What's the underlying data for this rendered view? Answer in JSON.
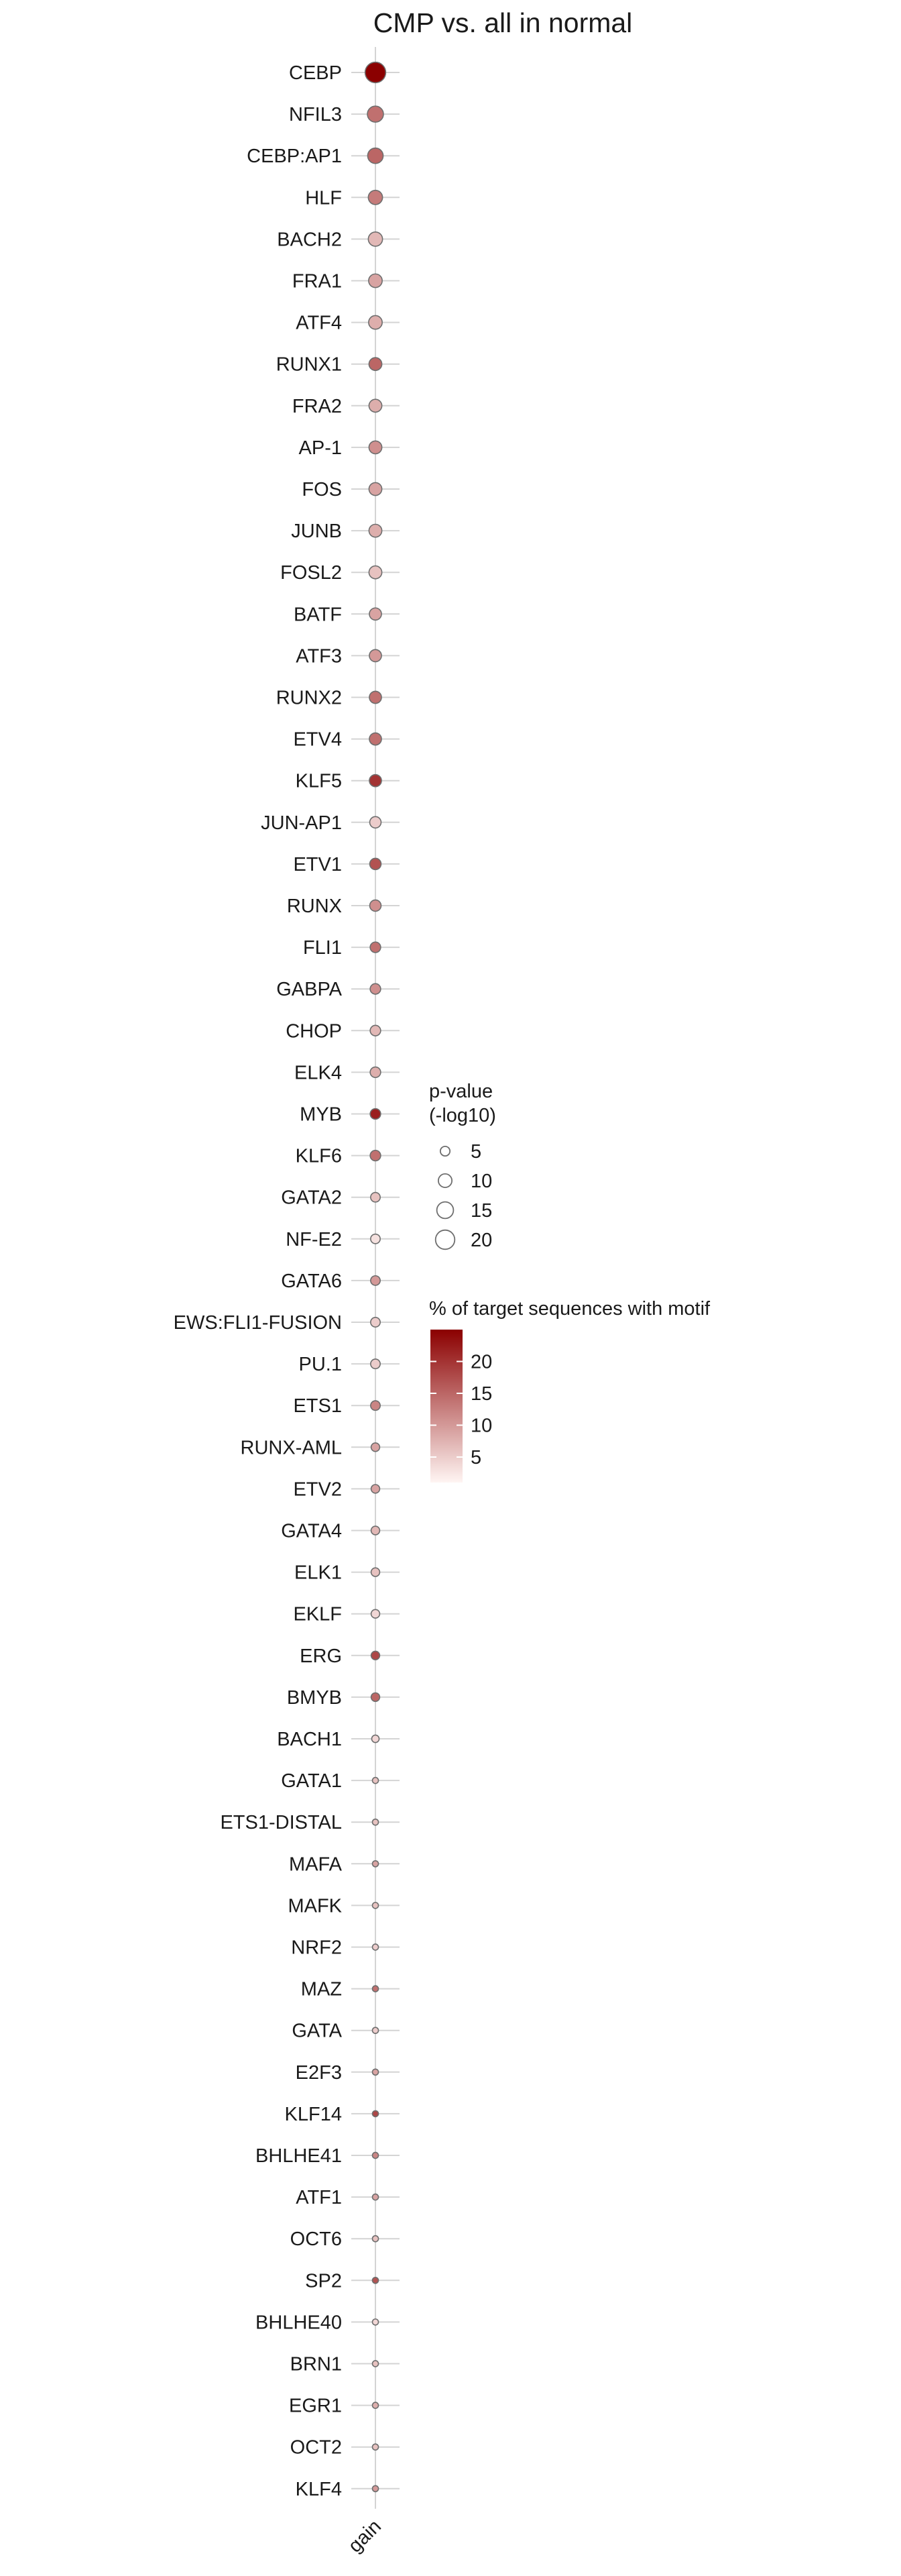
{
  "chart_data": {
    "type": "scatter",
    "title": "CMP vs. all in normal",
    "x_categories": [
      "gain"
    ],
    "categories": [
      "CEBP",
      "NFIL3",
      "CEBP:AP1",
      "HLF",
      "BACH2",
      "FRA1",
      "ATF4",
      "RUNX1",
      "FRA2",
      "AP-1",
      "FOS",
      "JUNB",
      "FOSL2",
      "BATF",
      "ATF3",
      "RUNX2",
      "ETV4",
      "KLF5",
      "JUN-AP1",
      "ETV1",
      "RUNX",
      "FLI1",
      "GABPA",
      "CHOP",
      "ELK4",
      "MYB",
      "KLF6",
      "GATA2",
      "NF-E2",
      "GATA6",
      "EWS:FLI1-FUSION",
      "PU.1",
      "ETS1",
      "RUNX-AML",
      "ETV2",
      "GATA4",
      "ELK1",
      "EKLF",
      "ERG",
      "BMYB",
      "BACH1",
      "GATA1",
      "ETS1-DISTAL",
      "MAFA",
      "MAFK",
      "NRF2",
      "MAZ",
      "GATA",
      "E2F3",
      "KLF14",
      "BHLHE41",
      "ATF1",
      "OCT6",
      "SP2",
      "BHLHE40",
      "BRN1",
      "EGR1",
      "OCT2",
      "KLF4"
    ],
    "pvalue_neglog10": [
      23,
      14,
      13,
      11,
      11,
      10,
      10,
      9,
      9,
      9,
      9,
      9,
      9,
      8,
      8,
      8,
      8,
      8,
      7,
      7,
      7,
      6,
      6,
      6,
      6,
      6,
      6,
      5,
      5,
      5,
      5,
      5,
      5,
      4,
      4,
      4,
      4,
      4,
      4,
      4,
      3,
      2,
      2,
      2,
      2,
      2,
      2,
      2,
      2,
      2,
      2,
      2,
      2,
      2,
      2,
      2,
      2,
      2,
      2
    ],
    "percent_with_motif": [
      25,
      14,
      15,
      13,
      7,
      9,
      8,
      15,
      8,
      11,
      9,
      8,
      6,
      9,
      10,
      14,
      14,
      20,
      5,
      17,
      11,
      14,
      11,
      7,
      8,
      22,
      14,
      6,
      3,
      10,
      5,
      5,
      12,
      9,
      9,
      7,
      6,
      4,
      18,
      15,
      4,
      6,
      6,
      9,
      6,
      5,
      14,
      5,
      9,
      18,
      12,
      9,
      6,
      17,
      4,
      6,
      8,
      6,
      10
    ],
    "legend_size": {
      "title_lines": [
        "p-value",
        "(-log10)"
      ],
      "values": [
        5,
        10,
        15,
        20
      ]
    },
    "legend_color": {
      "title": "% of target sequences with motif",
      "ticks": [
        5,
        10,
        15,
        20
      ],
      "range": [
        1,
        25
      ],
      "low_color": "#fff5f3",
      "high_color": "#8b0000"
    },
    "legend_placement": "right",
    "grid": true,
    "point_outline_color": "#6e6e6e",
    "grid_color": "#d4d4d4"
  }
}
